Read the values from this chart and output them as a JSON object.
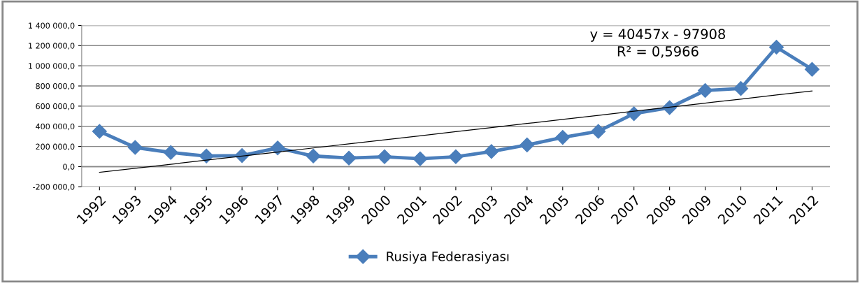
{
  "chart_data": {
    "type": "line",
    "categories": [
      "1992",
      "1993",
      "1994",
      "1995",
      "1996",
      "1997",
      "1998",
      "1999",
      "2000",
      "2001",
      "2002",
      "2003",
      "2004",
      "2005",
      "2006",
      "2007",
      "2008",
      "2009",
      "2010",
      "2011",
      "2012"
    ],
    "series": [
      {
        "name": "Rusiya Federasiyası",
        "color": "#4a7ebb",
        "marker": "diamond",
        "values": [
          350000,
          190000,
          140000,
          105000,
          110000,
          185000,
          105000,
          85000,
          98000,
          78000,
          98000,
          150000,
          215000,
          290000,
          350000,
          525000,
          585000,
          755000,
          775000,
          1185000,
          965000
        ]
      },
      {
        "type": "line",
        "color": "#000000",
        "marker": "none",
        "values": [
          -57000,
          -17000,
          23000,
          64000,
          104000,
          144000,
          185000,
          225000,
          266000,
          306000,
          347000,
          387000,
          428000,
          468000,
          509000,
          549000,
          590000,
          630000,
          670000,
          711000,
          751000
        ]
      }
    ],
    "ylim": [
      -200000,
      1400000
    ],
    "yticks": [
      {
        "value": -200000,
        "label": "-200 000,0"
      },
      {
        "value": 0,
        "label": "0,0"
      },
      {
        "value": 200000,
        "label": "200 000,0"
      },
      {
        "value": 400000,
        "label": "400 000,0"
      },
      {
        "value": 600000,
        "label": "600 000,0"
      },
      {
        "value": 800000,
        "label": "800 000,0"
      },
      {
        "value": 1000000,
        "label": "1 000 000,0"
      },
      {
        "value": 1200000,
        "label": "1 200 000,0"
      },
      {
        "value": 1400000,
        "label": "1 400 000,0"
      }
    ],
    "grid": "y",
    "legend": "bottom",
    "annotations": [
      "y = 40457x - 97908\nR² = 0,5966"
    ]
  }
}
